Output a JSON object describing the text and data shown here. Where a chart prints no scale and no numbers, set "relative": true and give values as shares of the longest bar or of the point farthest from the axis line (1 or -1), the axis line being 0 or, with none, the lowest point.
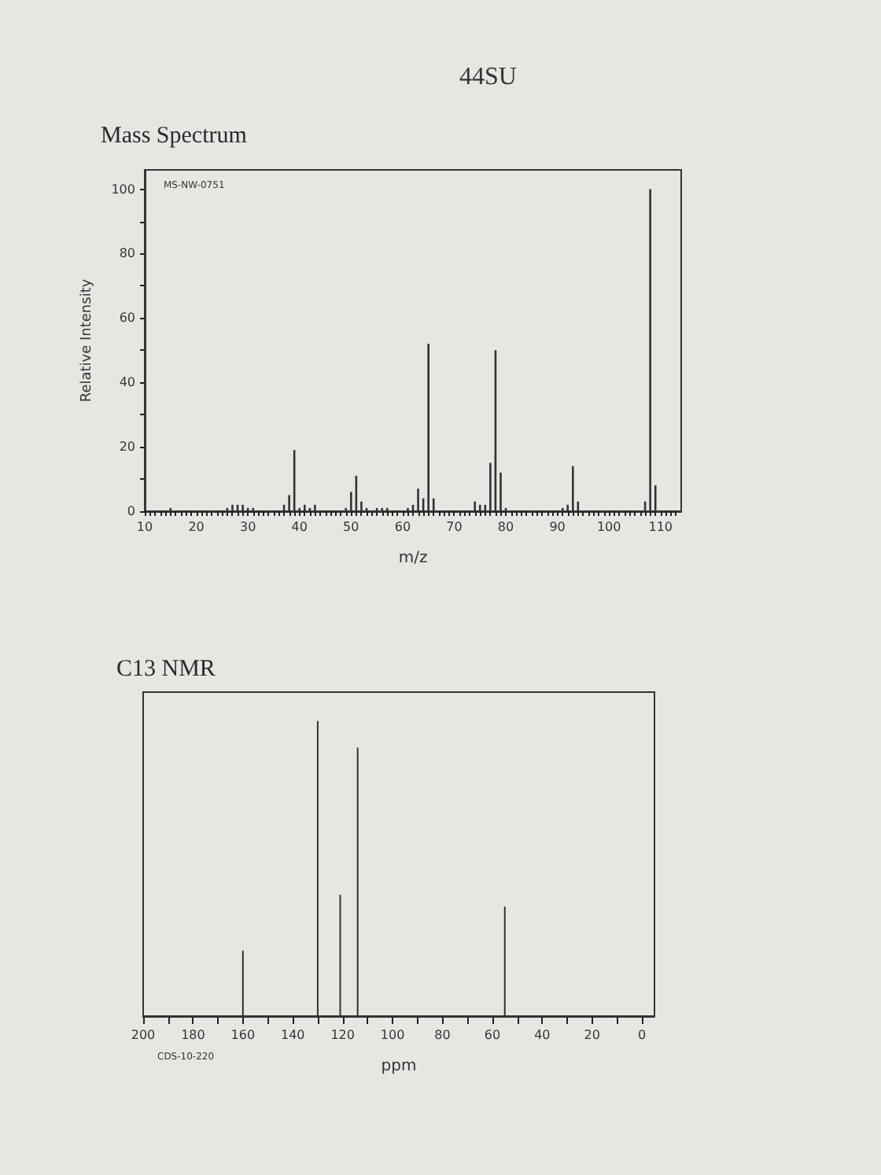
{
  "chart_data": [
    {
      "type": "bar",
      "title": "Mass Spectrum",
      "annotations": [
        "44SU",
        "MS-NW-0751"
      ],
      "xlabel": "m/z",
      "ylabel": "Relative Intensity",
      "color": "#333333",
      "x": [
        15,
        26,
        27,
        28,
        29,
        30,
        31,
        37,
        38,
        39,
        40,
        41,
        42,
        43,
        49,
        50,
        51,
        52,
        53,
        55,
        56,
        57,
        61,
        62,
        63,
        64,
        65,
        66,
        74,
        75,
        76,
        77,
        78,
        79,
        80,
        91,
        92,
        93,
        94,
        107,
        108,
        109
      ],
      "values": [
        1,
        1,
        2,
        2,
        2,
        1,
        1,
        2,
        5,
        19,
        1,
        2,
        1,
        2,
        1,
        6,
        11,
        3,
        1,
        1,
        1,
        1,
        1,
        2,
        7,
        4,
        52,
        4,
        3,
        2,
        2,
        15,
        50,
        12,
        1,
        1,
        2,
        14,
        3,
        3,
        100,
        8
      ],
      "xlim": [
        10,
        114
      ],
      "xticks": [
        10,
        {
          "value": 11,
          "label": null
        },
        {
          "value": 12,
          "label": null
        },
        {
          "value": 13,
          "label": null
        },
        {
          "value": 14,
          "label": null
        },
        {
          "value": 15,
          "label": null
        },
        {
          "value": 16,
          "label": null
        },
        {
          "value": 17,
          "label": null
        },
        {
          "value": 18,
          "label": null
        },
        {
          "value": 19,
          "label": null
        },
        20,
        {
          "value": 21,
          "label": null
        },
        {
          "value": 22,
          "label": null
        },
        {
          "value": 23,
          "label": null
        },
        {
          "value": 24,
          "label": null
        },
        {
          "value": 25,
          "label": null
        },
        {
          "value": 26,
          "label": null
        },
        {
          "value": 27,
          "label": null
        },
        {
          "value": 28,
          "label": null
        },
        {
          "value": 29,
          "label": null
        },
        30,
        {
          "value": 31,
          "label": null
        },
        {
          "value": 32,
          "label": null
        },
        {
          "value": 33,
          "label": null
        },
        {
          "value": 34,
          "label": null
        },
        {
          "value": 35,
          "label": null
        },
        {
          "value": 36,
          "label": null
        },
        {
          "value": 37,
          "label": null
        },
        {
          "value": 38,
          "label": null
        },
        {
          "value": 39,
          "label": null
        },
        40,
        {
          "value": 41,
          "label": null
        },
        {
          "value": 42,
          "label": null
        },
        {
          "value": 43,
          "label": null
        },
        {
          "value": 44,
          "label": null
        },
        {
          "value": 45,
          "label": null
        },
        {
          "value": 46,
          "label": null
        },
        {
          "value": 47,
          "label": null
        },
        {
          "value": 48,
          "label": null
        },
        {
          "value": 49,
          "label": null
        },
        50,
        {
          "value": 51,
          "label": null
        },
        {
          "value": 52,
          "label": null
        },
        {
          "value": 53,
          "label": null
        },
        {
          "value": 54,
          "label": null
        },
        {
          "value": 55,
          "label": null
        },
        {
          "value": 56,
          "label": null
        },
        {
          "value": 57,
          "label": null
        },
        {
          "value": 58,
          "label": null
        },
        {
          "value": 59,
          "label": null
        },
        60,
        {
          "value": 61,
          "label": null
        },
        {
          "value": 62,
          "label": null
        },
        {
          "value": 63,
          "label": null
        },
        {
          "value": 64,
          "label": null
        },
        {
          "value": 65,
          "label": null
        },
        {
          "value": 66,
          "label": null
        },
        {
          "value": 67,
          "label": null
        },
        {
          "value": 68,
          "label": null
        },
        {
          "value": 69,
          "label": null
        },
        70,
        {
          "value": 71,
          "label": null
        },
        {
          "value": 72,
          "label": null
        },
        {
          "value": 73,
          "label": null
        },
        {
          "value": 74,
          "label": null
        },
        {
          "value": 75,
          "label": null
        },
        {
          "value": 76,
          "label": null
        },
        {
          "value": 77,
          "label": null
        },
        {
          "value": 78,
          "label": null
        },
        {
          "value": 79,
          "label": null
        },
        80,
        {
          "value": 81,
          "label": null
        },
        {
          "value": 82,
          "label": null
        },
        {
          "value": 83,
          "label": null
        },
        {
          "value": 84,
          "label": null
        },
        {
          "value": 85,
          "label": null
        },
        {
          "value": 86,
          "label": null
        },
        {
          "value": 87,
          "label": null
        },
        {
          "value": 88,
          "label": null
        },
        {
          "value": 89,
          "label": null
        },
        90,
        {
          "value": 91,
          "label": null
        },
        {
          "value": 92,
          "label": null
        },
        {
          "value": 93,
          "label": null
        },
        {
          "value": 94,
          "label": null
        },
        {
          "value": 95,
          "label": null
        },
        {
          "value": 96,
          "label": null
        },
        {
          "value": 97,
          "label": null
        },
        {
          "value": 98,
          "label": null
        },
        {
          "value": 99,
          "label": null
        },
        100,
        {
          "value": 101,
          "label": null
        },
        {
          "value": 102,
          "label": null
        },
        {
          "value": 103,
          "label": null
        },
        {
          "value": 104,
          "label": null
        },
        {
          "value": 105,
          "label": null
        },
        {
          "value": 106,
          "label": null
        },
        {
          "value": 107,
          "label": null
        },
        {
          "value": 108,
          "label": null
        },
        {
          "value": 109,
          "label": null
        },
        110,
        {
          "value": 111,
          "label": null
        },
        {
          "value": 112,
          "label": null
        },
        {
          "value": 113,
          "label": null
        }
      ],
      "ylim": [
        0,
        106
      ],
      "yticks": [
        0,
        {
          "value": 10,
          "label": null
        },
        20,
        {
          "value": 30,
          "label": null
        },
        40,
        {
          "value": 50,
          "label": null
        },
        60,
        {
          "value": 70,
          "label": null
        },
        80,
        {
          "value": 90,
          "label": null
        },
        100
      ]
    },
    {
      "type": "line",
      "title": "C13 NMR",
      "annotations": [
        "CDS-10-220"
      ],
      "xlabel": "ppm",
      "relative": true,
      "color": "#333333",
      "x": [
        200,
        160,
        160,
        160,
        130,
        130,
        130,
        121,
        121,
        121,
        114,
        114,
        114,
        55,
        55,
        55,
        -5
      ],
      "values": [
        0,
        0,
        0.22,
        0,
        0,
        1,
        0,
        0,
        0.41,
        0,
        0,
        0.91,
        0,
        0,
        0.37,
        0,
        0
      ],
      "xlim": [
        200,
        -5
      ],
      "xticks": [
        200,
        {
          "value": 190,
          "label": null
        },
        180,
        {
          "value": 170,
          "label": null
        },
        160,
        {
          "value": 150,
          "label": null
        },
        140,
        {
          "value": 130,
          "label": null
        },
        120,
        {
          "value": 110,
          "label": null
        },
        100,
        {
          "value": 90,
          "label": null
        },
        80,
        {
          "value": 70,
          "label": null
        },
        60,
        {
          "value": 50,
          "label": null
        },
        40,
        {
          "value": 30,
          "label": null
        },
        20,
        {
          "value": 10,
          "label": null
        },
        0
      ]
    }
  ]
}
